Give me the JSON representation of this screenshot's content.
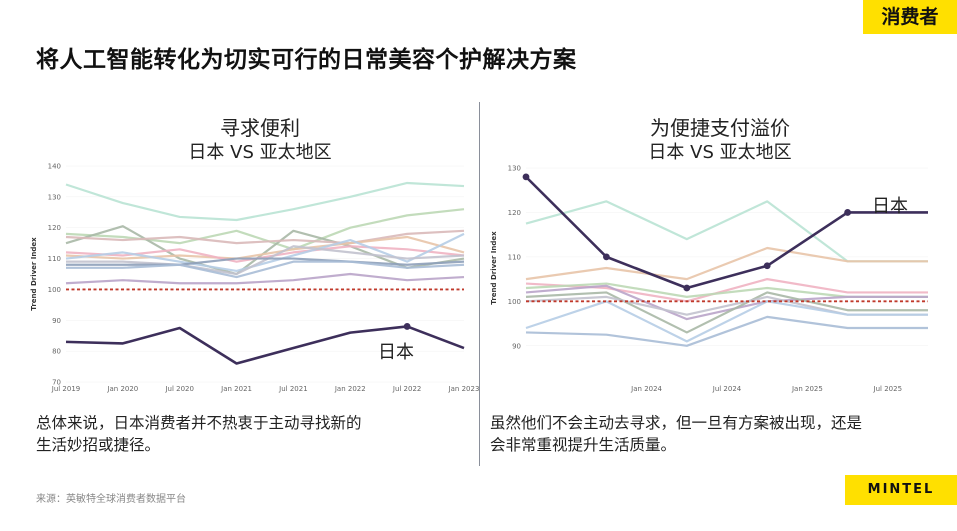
{
  "header": {
    "tag": "消费者",
    "title": "将人工智能转化为切实可行的日常美容个护解决方案"
  },
  "left": {
    "title": "寻求便利",
    "subtitle": "日本 VS 亚太地区",
    "caption_line1": "总体来说，日本消费者并不热衷于主动寻找新的",
    "caption_line2": "生活妙招或捷径。"
  },
  "right": {
    "title": "为便捷支付溢价",
    "subtitle": "日本 VS 亚太地区",
    "caption_line1": "虽然他们不会主动去寻求，但一旦有方案被出现，还是",
    "caption_line2": "会非常重视提升生活质量。"
  },
  "footer": {
    "source": "来源：英敏特全球消费者数据平台",
    "brand": "MINTEL"
  },
  "colors": {
    "highlight": "#3d2f5b",
    "reference": "#c0392b",
    "accent": "#ffe000"
  },
  "chart_data": [
    {
      "type": "line",
      "title": "寻求便利",
      "subtitle": "日本 VS 亚太地区",
      "ylabel": "Trend Driver Index",
      "ylim": [
        70,
        140
      ],
      "yticks": [
        70,
        80,
        90,
        100,
        110,
        120,
        130,
        140
      ],
      "x": [
        0,
        1,
        2,
        3,
        4,
        5,
        6,
        7
      ],
      "xlim": [
        0,
        7
      ],
      "xticks": [
        "Jul 2019",
        "Jan 2020",
        "Jul 2020",
        "Jan 2021",
        "Jul 2021",
        "Jan 2022",
        "Jul 2022",
        "Jan 2023"
      ],
      "reference_line": 100,
      "highlight": {
        "name": "日本",
        "label": "日本",
        "color": "#3d2f5b",
        "values": [
          83,
          82.5,
          87.5,
          76,
          81,
          86,
          88,
          81
        ],
        "marker_index": 6
      },
      "series": [
        {
          "name": "s1",
          "color": "#b9e3d4",
          "values": [
            134,
            128,
            123.5,
            122.5,
            126,
            130,
            134.5,
            133.5
          ]
        },
        {
          "name": "s2",
          "color": "#bcd8b5",
          "values": [
            118,
            117,
            115,
            119,
            113,
            120,
            124,
            126
          ]
        },
        {
          "name": "s3",
          "color": "#a9b8a6",
          "values": [
            115,
            120.5,
            110,
            105,
            119,
            114,
            107,
            110
          ]
        },
        {
          "name": "s4",
          "color": "#d9b9b9",
          "values": [
            117,
            116,
            117,
            115,
            116,
            115,
            118,
            119
          ]
        },
        {
          "name": "s5",
          "color": "#e8c4a8",
          "values": [
            111,
            110,
            111,
            110,
            113,
            115,
            117,
            112
          ]
        },
        {
          "name": "s6",
          "color": "#efb2c2",
          "values": [
            112,
            111,
            113,
            109,
            112,
            114,
            113,
            111
          ]
        },
        {
          "name": "s7",
          "color": "#b6cde6",
          "values": [
            110,
            112,
            109,
            106,
            111,
            116,
            109,
            118
          ]
        },
        {
          "name": "s8",
          "color": "#c2c2ce",
          "values": [
            109,
            109,
            108,
            105,
            114,
            112,
            110,
            111
          ]
        },
        {
          "name": "s9",
          "color": "#8ea0b9",
          "values": [
            108,
            108,
            108,
            110,
            110,
            109,
            108,
            109
          ]
        },
        {
          "name": "s10",
          "color": "#a9bcd6",
          "values": [
            107,
            107,
            108,
            104,
            109,
            109,
            107,
            108
          ]
        },
        {
          "name": "s11",
          "color": "#b9a4c9",
          "values": [
            102,
            103,
            102,
            102,
            103,
            105,
            103,
            104
          ]
        }
      ]
    },
    {
      "type": "line",
      "title": "为便捷支付溢价",
      "subtitle": "日本 VS 亚太地区",
      "ylabel": "Trend Driver Index",
      "ylim": [
        85,
        130
      ],
      "yticks": [
        90,
        100,
        110,
        120,
        130
      ],
      "x": [
        0,
        1,
        2,
        3,
        4,
        5
      ],
      "xlim": [
        0,
        5
      ],
      "xticks": [
        {
          "label": "Jan 2024",
          "at": 1.5
        },
        {
          "label": "Jul 2024",
          "at": 2.5
        },
        {
          "label": "Jan 2025",
          "at": 3.5
        },
        {
          "label": "Jul 2025",
          "at": 4.5
        }
      ],
      "reference_line": 100,
      "highlight": {
        "name": "日本",
        "label": "日本",
        "color": "#3d2f5b",
        "values": [
          128,
          110,
          103,
          108,
          120,
          120
        ],
        "marker_index": "all"
      },
      "series": [
        {
          "name": "s1",
          "color": "#b9e3d4",
          "values": [
            117.5,
            122.5,
            114,
            122.5,
            109,
            109
          ]
        },
        {
          "name": "s2",
          "color": "#e8c4a8",
          "values": [
            105,
            107.5,
            105,
            112,
            109,
            109
          ]
        },
        {
          "name": "s3",
          "color": "#efb2c2",
          "values": [
            104,
            103,
            100,
            105,
            102,
            102
          ]
        },
        {
          "name": "s4",
          "color": "#bcd8b5",
          "values": [
            103,
            104,
            101,
            103,
            101,
            101
          ]
        },
        {
          "name": "s5",
          "color": "#b9a4c9",
          "values": [
            102,
            103.5,
            96,
            100,
            101,
            101
          ]
        },
        {
          "name": "s6",
          "color": "#a9b8a6",
          "values": [
            101,
            102,
            93,
            102,
            98,
            98
          ]
        },
        {
          "name": "s7",
          "color": "#c2c2ce",
          "values": [
            100,
            101,
            97,
            101,
            97,
            97
          ]
        },
        {
          "name": "s8",
          "color": "#b6cde6",
          "values": [
            94,
            100,
            91,
            100,
            97,
            97
          ]
        },
        {
          "name": "s9",
          "color": "#a9bcd6",
          "values": [
            93,
            92.5,
            90,
            96.5,
            94,
            94
          ]
        }
      ]
    }
  ]
}
